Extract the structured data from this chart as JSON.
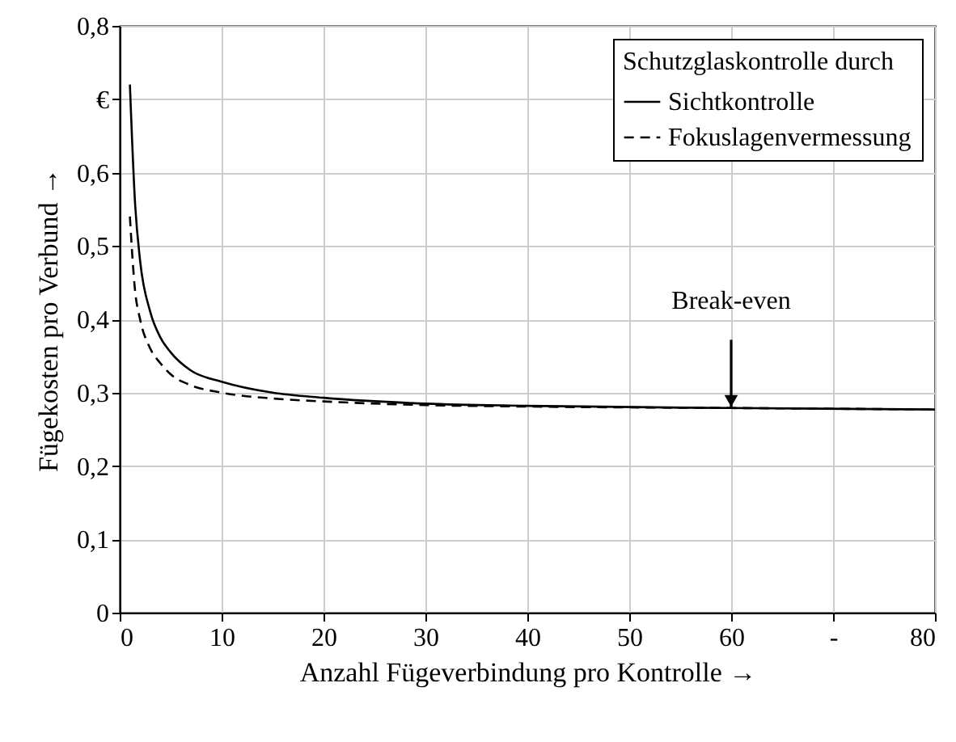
{
  "chart_data": {
    "type": "line",
    "xlabel": "Anzahl Fügeverbindung pro Kontrolle →",
    "ylabel": "Fügekosten pro Verbund →",
    "legend_title": "Schutzglaskontrolle durch",
    "legend": "top right",
    "grid": true,
    "xlim": [
      0,
      80
    ],
    "xticks": [
      0,
      10,
      20,
      30,
      40,
      50,
      60,
      {
        "value": 70,
        "label": "-"
      },
      80
    ],
    "ylim": [
      0,
      0.8
    ],
    "yticks": [
      0,
      {
        "value": 0.1,
        "label": "0,1"
      },
      {
        "value": 0.2,
        "label": "0,2"
      },
      {
        "value": 0.3,
        "label": "0,3"
      },
      {
        "value": 0.4,
        "label": "0,4"
      },
      {
        "value": 0.5,
        "label": "0,5"
      },
      {
        "value": 0.6,
        "label": "0,6"
      },
      {
        "value": 0.7,
        "label": "€"
      },
      {
        "value": 0.8,
        "label": "0,8"
      }
    ],
    "x": [
      1,
      1.5,
      2,
      3,
      4,
      5,
      7,
      10,
      15,
      20,
      30,
      40,
      60,
      80
    ],
    "series": [
      {
        "name": "Sichtkontrolle",
        "color": "#000000",
        "line_style": "solid",
        "values": [
          0.72,
          0.56,
          0.48,
          0.41,
          0.375,
          0.355,
          0.33,
          0.315,
          0.3,
          0.293,
          0.285,
          0.282,
          0.279,
          0.277
        ]
      },
      {
        "name": "Fokuslagenvermessung",
        "color": "#000000",
        "line_style": "dashed",
        "values": [
          0.54,
          0.44,
          0.4,
          0.36,
          0.34,
          0.325,
          0.31,
          0.3,
          0.292,
          0.288,
          0.283,
          0.281,
          0.279,
          0.277
        ]
      }
    ],
    "annotations": [
      {
        "text": "Break-even",
        "x": 60,
        "y": 0.28
      }
    ]
  }
}
